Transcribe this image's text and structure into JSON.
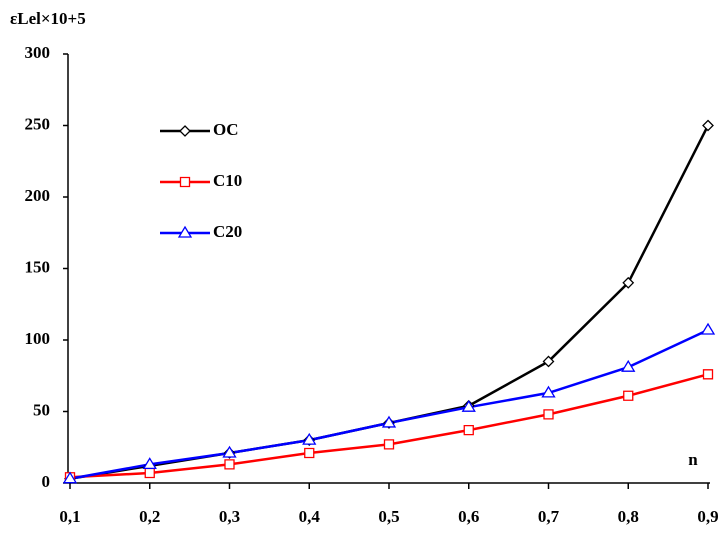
{
  "chart_data": {
    "type": "line",
    "y_label": "εLel×10+5",
    "x_label": "n",
    "categories": [
      "0,1",
      "0,2",
      "0,3",
      "0,4",
      "0,5",
      "0,6",
      "0,7",
      "0,8",
      "0,9"
    ],
    "series": [
      {
        "name": "OC",
        "color": "#000000",
        "marker": "diamond",
        "values": [
          3,
          12,
          21,
          30,
          42,
          54,
          85,
          140,
          250
        ]
      },
      {
        "name": "C10",
        "color": "#ff0000",
        "marker": "square",
        "values": [
          4,
          7,
          13,
          21,
          27,
          37,
          48,
          61,
          76
        ]
      },
      {
        "name": "C20",
        "color": "#0000ff",
        "marker": "triangle",
        "values": [
          3,
          13,
          21,
          30,
          42,
          53,
          63,
          81,
          107
        ]
      }
    ],
    "ylim": [
      0,
      300
    ],
    "yticks": [
      0,
      50,
      100,
      150,
      200,
      250,
      300
    ]
  }
}
